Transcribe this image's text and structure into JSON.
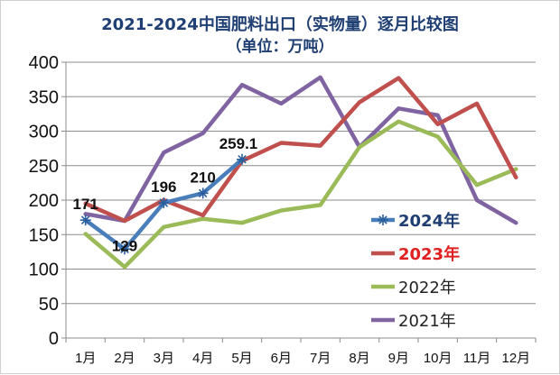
{
  "chart_data": {
    "type": "line",
    "title": "2021-2024中国肥料出口（实物量）逐月比较图",
    "subtitle": "（单位：万吨）",
    "xlabel": "",
    "ylabel": "",
    "ylim": [
      0,
      400
    ],
    "yticks": [
      0,
      50,
      100,
      150,
      200,
      250,
      300,
      350,
      400
    ],
    "grid": true,
    "legend_position": "right",
    "categories": [
      "1月",
      "2月",
      "3月",
      "4月",
      "5月",
      "6月",
      "7月",
      "8月",
      "9月",
      "10月",
      "11月",
      "12月"
    ],
    "series": [
      {
        "name": "2024年",
        "color": "#4a7ebb",
        "marker": "star",
        "label_color": "#1f3f73",
        "values": [
          171,
          129,
          196,
          210,
          259.1,
          null,
          null,
          null,
          null,
          null,
          null,
          null
        ],
        "data_labels": [
          {
            "index": 0,
            "text": "171"
          },
          {
            "index": 1,
            "text": "129"
          },
          {
            "index": 2,
            "text": "196"
          },
          {
            "index": 3,
            "text": "210"
          },
          {
            "index": 4,
            "text": "259.1"
          }
        ]
      },
      {
        "name": "2023年",
        "color": "#c0504d",
        "marker": "none",
        "label_color": "#e02020",
        "values": [
          195,
          170,
          200,
          178,
          257,
          283,
          279,
          342,
          377,
          310,
          340,
          233
        ]
      },
      {
        "name": "2022年",
        "color": "#9bbb59",
        "marker": "none",
        "label_color": "#222222",
        "values": [
          151,
          103,
          161,
          173,
          167,
          185,
          193,
          277,
          314,
          292,
          222,
          245
        ]
      },
      {
        "name": "2021年",
        "color": "#8064a2",
        "marker": "none",
        "label_color": "#222222",
        "values": [
          180,
          170,
          269,
          297,
          367,
          340,
          378,
          277,
          333,
          323,
          200,
          167
        ]
      }
    ]
  }
}
